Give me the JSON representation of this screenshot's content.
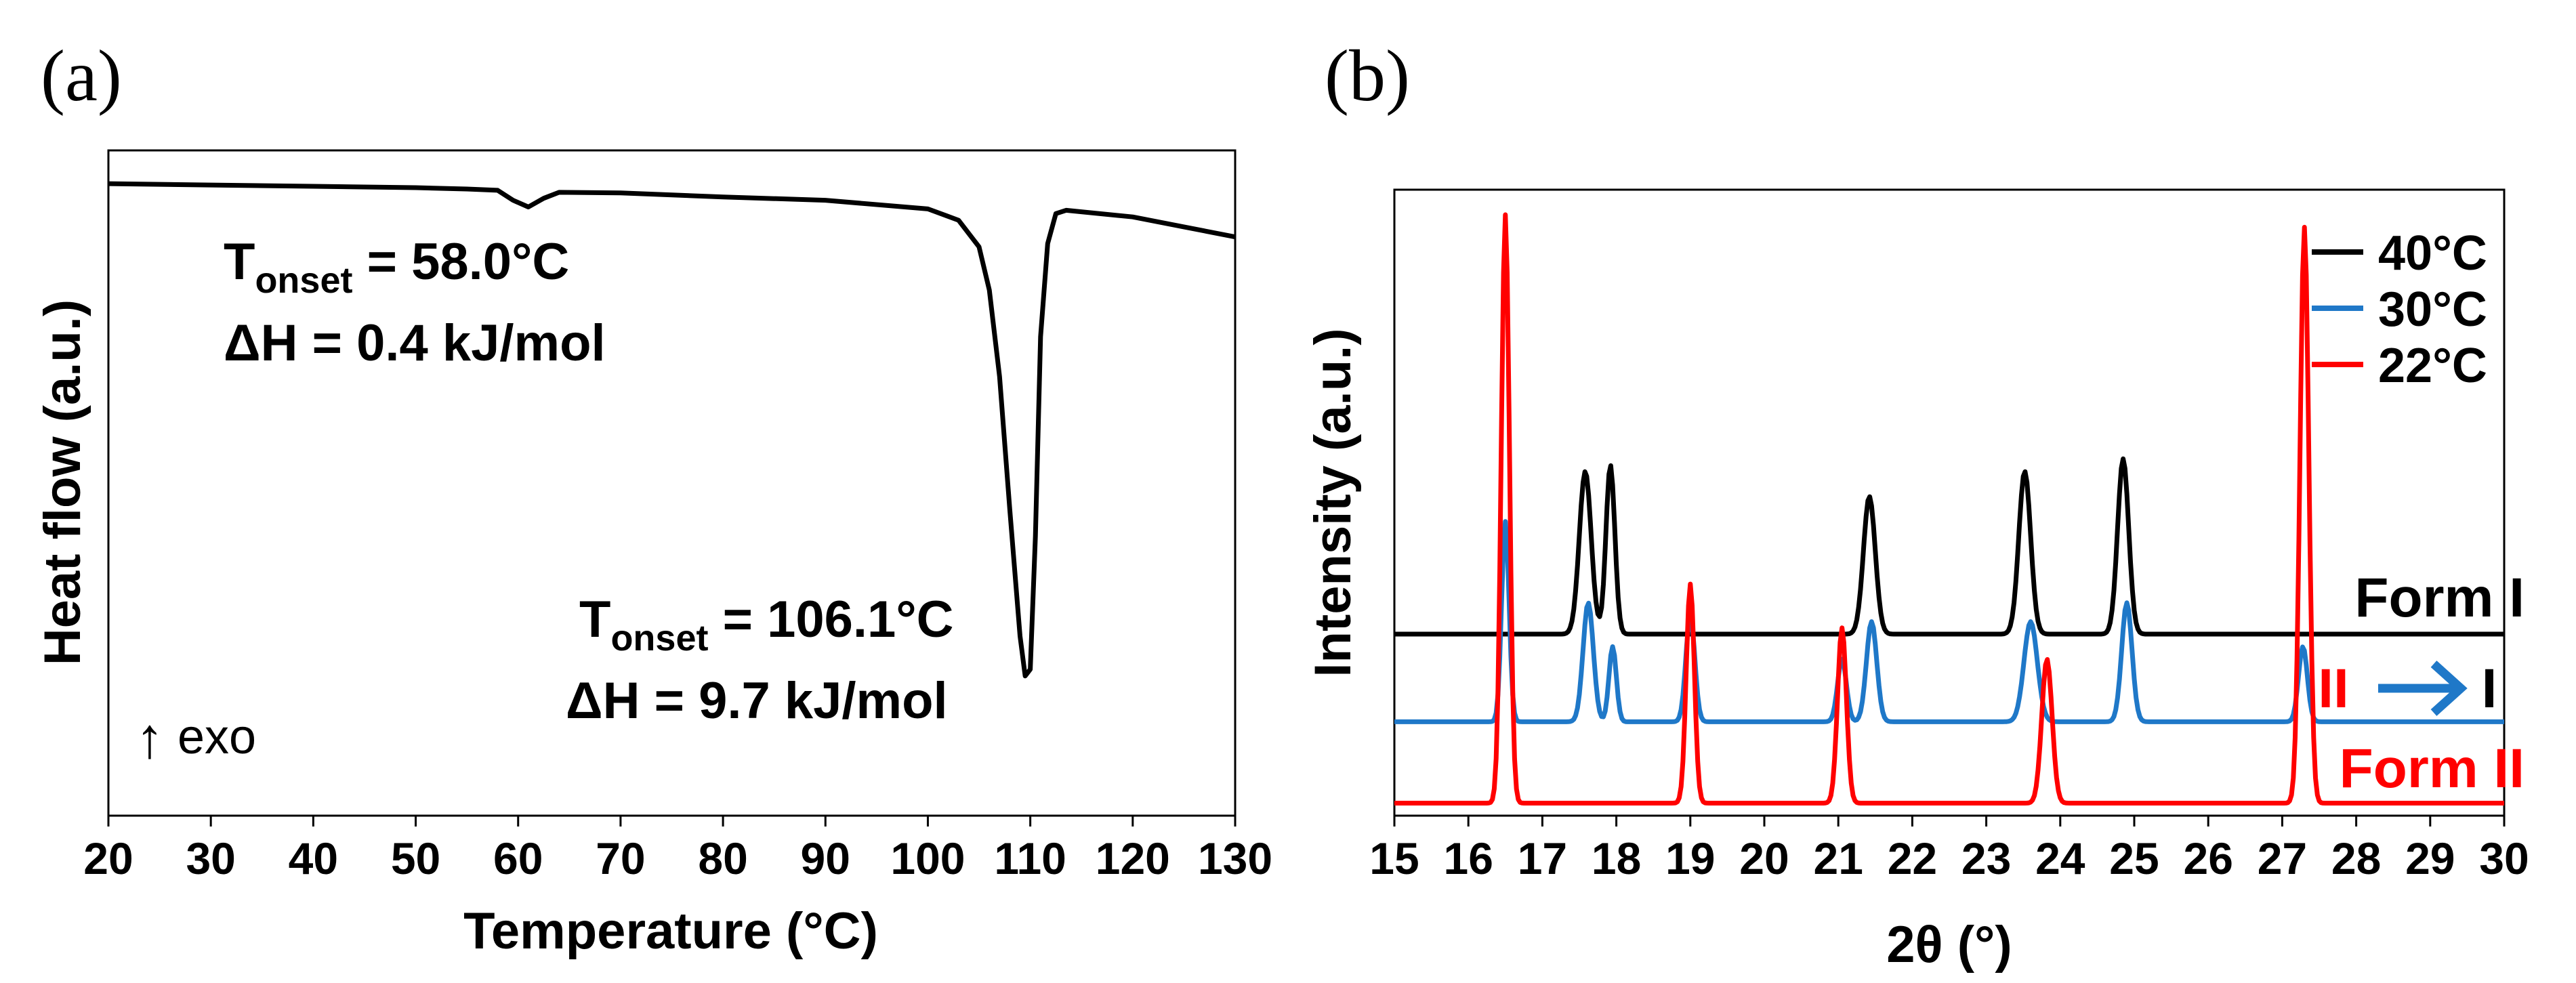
{
  "chart_data": [
    {
      "panel_label": "(a)",
      "type": "line",
      "xlabel": "Temperature (°C)",
      "ylabel": "Heat flow (a.u.)",
      "xlim": [
        20,
        130
      ],
      "ylim": [
        0,
        1
      ],
      "xticks": [
        "20",
        "30",
        "40",
        "50",
        "60",
        "70",
        "80",
        "90",
        "100",
        "110",
        "120",
        "130"
      ],
      "series": [
        {
          "name": "DSC",
          "color": "#000000",
          "x": [
            20,
            30,
            40,
            50,
            55,
            58,
            59.5,
            61,
            62.5,
            64,
            70,
            80,
            90,
            100,
            103,
            105,
            106,
            107,
            108,
            109,
            109.5,
            110,
            110.5,
            111,
            111.7,
            112.5,
            113.5,
            120,
            125,
            130
          ],
          "y": [
            0.95,
            0.948,
            0.946,
            0.944,
            0.942,
            0.94,
            0.925,
            0.915,
            0.928,
            0.937,
            0.936,
            0.93,
            0.925,
            0.912,
            0.895,
            0.855,
            0.79,
            0.66,
            0.46,
            0.27,
            0.21,
            0.22,
            0.42,
            0.72,
            0.86,
            0.905,
            0.91,
            0.9,
            0.885,
            0.87
          ]
        }
      ],
      "annotations": [
        {
          "main": "T",
          "sub": "onset",
          "rest": " = 58.0°C",
          "line2": "ΔH = 0.4 kJ/mol"
        },
        {
          "main": "T",
          "sub": "onset",
          "rest": " = 106.1°C",
          "line2": "ΔH = 9.7 kJ/mol"
        },
        {
          "text": "exo",
          "arrow": "↑"
        }
      ]
    },
    {
      "panel_label": "(b)",
      "type": "line",
      "xlabel": "2θ (°)",
      "ylabel": "Intensity (a.u.)",
      "xlim": [
        15,
        30
      ],
      "ylim": [
        0,
        1
      ],
      "xticks": [
        "15",
        "16",
        "17",
        "18",
        "19",
        "20",
        "21",
        "22",
        "23",
        "24",
        "25",
        "26",
        "27",
        "28",
        "29",
        "30"
      ],
      "legend": {
        "position": "top-right",
        "entries": [
          "40°C",
          "30°C",
          "22°C"
        ]
      },
      "series": [
        {
          "name": "40°C",
          "color": "#000000",
          "baseline": 0.29,
          "peaks": [
            [
              17.58,
              0.26,
              0.08
            ],
            [
              17.92,
              0.27,
              0.06
            ],
            [
              21.42,
              0.22,
              0.08
            ],
            [
              23.52,
              0.26,
              0.08
            ],
            [
              24.85,
              0.28,
              0.075
            ]
          ]
        },
        {
          "name": "30°C",
          "color": "#1F78C8",
          "baseline": 0.15,
          "peaks": [
            [
              16.5,
              0.32,
              0.05
            ],
            [
              17.62,
              0.19,
              0.07
            ],
            [
              17.95,
              0.12,
              0.05
            ],
            [
              19.0,
              0.17,
              0.06
            ],
            [
              21.05,
              0.1,
              0.06
            ],
            [
              21.45,
              0.16,
              0.07
            ],
            [
              23.6,
              0.16,
              0.09
            ],
            [
              24.9,
              0.19,
              0.07
            ],
            [
              27.28,
              0.12,
              0.06
            ]
          ]
        },
        {
          "name": "22°C",
          "color": "#FF0000",
          "baseline": 0.02,
          "peaks": [
            [
              16.5,
              0.94,
              0.055
            ],
            [
              19.0,
              0.35,
              0.055
            ],
            [
              21.05,
              0.28,
              0.06
            ],
            [
              23.82,
              0.23,
              0.07
            ],
            [
              27.3,
              0.92,
              0.06
            ]
          ]
        }
      ],
      "annotations": [
        {
          "text": "Form I",
          "color": "#000000"
        },
        {
          "from": "II",
          "to": "I",
          "arrow_color": "#1F78C8"
        },
        {
          "text": "Form II",
          "color": "#FF0000"
        }
      ]
    }
  ]
}
